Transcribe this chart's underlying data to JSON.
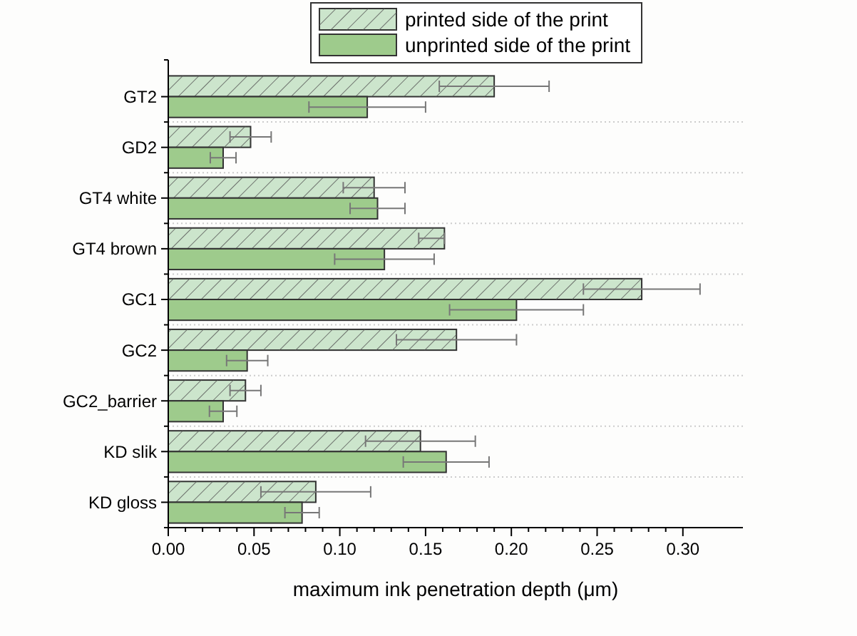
{
  "chart_data": {
    "type": "bar",
    "orientation": "horizontal",
    "xlabel": "maximum ink penetration depth (μm)",
    "categories": [
      "GT2",
      "GD2",
      "GT4 white",
      "GT4 brown",
      "GC1",
      "GC2",
      "GC2_barrier",
      "KD slik",
      "KD gloss"
    ],
    "series": [
      {
        "name": "printed side of the print",
        "color": "#cce5cc",
        "values": [
          0.19,
          0.048,
          0.12,
          0.161,
          0.276,
          0.168,
          0.045,
          0.147,
          0.086
        ],
        "errors": [
          0.032,
          0.012,
          0.018,
          [
            0.146,
            0.161
          ],
          0.034,
          0.035,
          0.009,
          0.032,
          0.032
        ]
      },
      {
        "name": "unprinted side of the print",
        "color": "#9ecb8c",
        "values": [
          0.116,
          0.032,
          0.122,
          0.126,
          0.203,
          0.046,
          0.032,
          0.162,
          0.078
        ],
        "errors": [
          0.034,
          0.0075,
          0.016,
          0.029,
          0.039,
          0.012,
          0.008,
          0.025,
          0.01
        ]
      }
    ],
    "xlim": [
      0,
      0.335
    ],
    "xticks": [
      {
        "value": 0,
        "label": "0.00"
      },
      {
        "value": 0.05,
        "label": "0.05"
      },
      {
        "value": 0.1,
        "label": "0.10"
      },
      {
        "value": 0.15,
        "label": "0.15"
      },
      {
        "value": 0.2,
        "label": "0.20"
      },
      {
        "value": 0.25,
        "label": "0.25"
      },
      {
        "value": 0.3,
        "label": "0.30"
      }
    ],
    "grid": "y",
    "legend": "top"
  }
}
